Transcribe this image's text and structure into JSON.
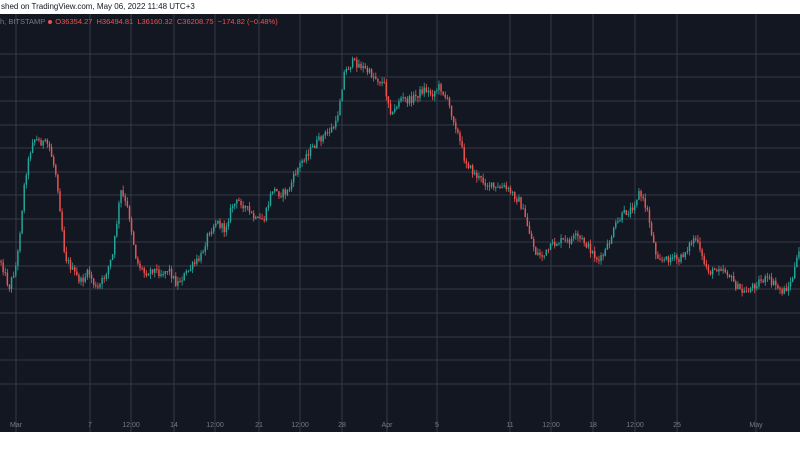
{
  "header": {
    "attribution": "shed on TradingView.com, May 06, 2022 11:48 UTC+3"
  },
  "legend": {
    "symbol": "h, BITSTAMP",
    "open": "O36354.27",
    "high": "H36494.81",
    "low": "L36160.32",
    "close": "C36208.75",
    "change": "−174.82 (−0.48%)"
  },
  "colors": {
    "background": "#131722",
    "grid": "#363a45",
    "up": "#26a69a",
    "down": "#ef5350",
    "axis_text": "#787b86"
  },
  "chart_data": {
    "type": "candlestick",
    "x_ticks": [
      "Mar",
      "7",
      "12:00",
      "14",
      "12:00",
      "21",
      "12:00",
      "28",
      "Apr",
      "5",
      "11",
      "12:00",
      "18",
      "12:00",
      "25",
      "May"
    ],
    "price_path": [
      [
        0.0,
        261
      ],
      [
        0.01,
        288
      ],
      [
        0.02,
        262
      ],
      [
        0.03,
        178
      ],
      [
        0.04,
        138
      ],
      [
        0.05,
        142
      ],
      [
        0.06,
        145
      ],
      [
        0.07,
        178
      ],
      [
        0.08,
        256
      ],
      [
        0.09,
        271
      ],
      [
        0.1,
        282
      ],
      [
        0.11,
        272
      ],
      [
        0.12,
        291
      ],
      [
        0.13,
        276
      ],
      [
        0.14,
        255
      ],
      [
        0.15,
        191
      ],
      [
        0.16,
        212
      ],
      [
        0.17,
        262
      ],
      [
        0.18,
        273
      ],
      [
        0.19,
        269
      ],
      [
        0.2,
        273
      ],
      [
        0.21,
        269
      ],
      [
        0.22,
        284
      ],
      [
        0.23,
        275
      ],
      [
        0.24,
        266
      ],
      [
        0.25,
        258
      ],
      [
        0.26,
        232
      ],
      [
        0.27,
        221
      ],
      [
        0.28,
        230
      ],
      [
        0.29,
        205
      ],
      [
        0.3,
        201
      ],
      [
        0.31,
        211
      ],
      [
        0.32,
        221
      ],
      [
        0.33,
        219
      ],
      [
        0.34,
        189
      ],
      [
        0.35,
        194
      ],
      [
        0.36,
        191
      ],
      [
        0.37,
        171
      ],
      [
        0.38,
        157
      ],
      [
        0.39,
        148
      ],
      [
        0.4,
        139
      ],
      [
        0.41,
        132
      ],
      [
        0.42,
        124
      ],
      [
        0.43,
        73
      ],
      [
        0.44,
        62
      ],
      [
        0.45,
        65
      ],
      [
        0.46,
        72
      ],
      [
        0.47,
        78
      ],
      [
        0.48,
        84
      ],
      [
        0.49,
        116
      ],
      [
        0.5,
        98
      ],
      [
        0.51,
        101
      ],
      [
        0.52,
        96
      ],
      [
        0.53,
        89
      ],
      [
        0.54,
        94
      ],
      [
        0.55,
        86
      ],
      [
        0.56,
        102
      ],
      [
        0.57,
        126
      ],
      [
        0.58,
        157
      ],
      [
        0.59,
        171
      ],
      [
        0.6,
        179
      ],
      [
        0.61,
        184
      ],
      [
        0.62,
        189
      ],
      [
        0.63,
        187
      ],
      [
        0.64,
        193
      ],
      [
        0.65,
        201
      ],
      [
        0.66,
        226
      ],
      [
        0.67,
        253
      ],
      [
        0.68,
        256
      ],
      [
        0.69,
        246
      ],
      [
        0.7,
        241
      ],
      [
        0.71,
        242
      ],
      [
        0.72,
        237
      ],
      [
        0.73,
        241
      ],
      [
        0.74,
        251
      ],
      [
        0.75,
        262
      ],
      [
        0.76,
        247
      ],
      [
        0.77,
        226
      ],
      [
        0.78,
        214
      ],
      [
        0.79,
        209
      ],
      [
        0.8,
        192
      ],
      [
        0.81,
        211
      ],
      [
        0.82,
        252
      ],
      [
        0.83,
        261
      ],
      [
        0.84,
        257
      ],
      [
        0.85,
        261
      ],
      [
        0.86,
        248
      ],
      [
        0.87,
        237
      ],
      [
        0.88,
        262
      ],
      [
        0.89,
        273
      ],
      [
        0.9,
        266
      ],
      [
        0.91,
        272
      ],
      [
        0.92,
        285
      ],
      [
        0.93,
        293
      ],
      [
        0.94,
        288
      ],
      [
        0.95,
        281
      ],
      [
        0.96,
        279
      ],
      [
        0.97,
        285
      ],
      [
        0.98,
        292
      ],
      [
        0.99,
        283
      ],
      [
        1.0,
        253
      ]
    ]
  }
}
